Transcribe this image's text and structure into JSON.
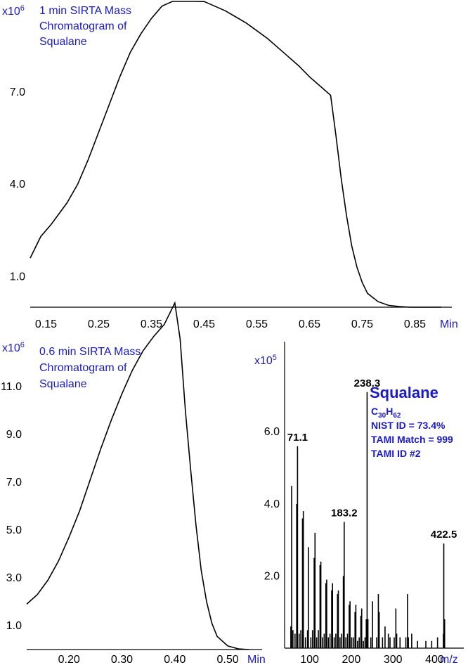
{
  "chart_data": [
    {
      "type": "line",
      "title": "1 min SIRTA Mass Chromatogram of Squalane",
      "title_lines": [
        "1 min SIRTA Mass",
        "Chromatogram of",
        "Squalane"
      ],
      "y_unit": "x10",
      "y_unit_exp": "6",
      "x_unit": "Min",
      "xlim": [
        0.12,
        0.92
      ],
      "ylim": [
        0,
        10
      ],
      "x_ticks": [
        {
          "v": 0.15,
          "label": "0.15"
        },
        {
          "v": 0.25,
          "label": "0.25"
        },
        {
          "v": 0.35,
          "label": "0.35"
        },
        {
          "v": 0.45,
          "label": "0.45"
        },
        {
          "v": 0.55,
          "label": "0.55"
        },
        {
          "v": 0.65,
          "label": "0.65"
        },
        {
          "v": 0.75,
          "label": "0.75"
        },
        {
          "v": 0.85,
          "label": "0.85"
        }
      ],
      "y_ticks": [
        {
          "v": 1.0,
          "label": "1.0"
        },
        {
          "v": 4.0,
          "label": "4.0"
        },
        {
          "v": 7.0,
          "label": "7.0"
        }
      ],
      "series": [
        {
          "x": [
            0.12,
            0.14,
            0.16,
            0.19,
            0.21,
            0.23,
            0.25,
            0.27,
            0.29,
            0.31,
            0.33,
            0.35,
            0.37,
            0.39,
            0.41,
            0.43,
            0.45,
            0.47,
            0.49,
            0.51,
            0.53,
            0.55,
            0.57,
            0.59,
            0.61,
            0.63,
            0.65,
            0.67,
            0.69,
            0.7,
            0.71,
            0.72,
            0.73,
            0.74,
            0.75,
            0.76,
            0.78,
            0.8,
            0.82,
            0.84,
            0.86,
            0.88,
            0.9
          ],
          "y": [
            1.6,
            2.3,
            2.7,
            3.4,
            4.0,
            4.8,
            5.7,
            6.6,
            7.5,
            8.3,
            8.9,
            9.4,
            9.8,
            10.0,
            10.05,
            10.02,
            9.95,
            9.8,
            9.65,
            9.45,
            9.25,
            9.0,
            8.75,
            8.45,
            8.15,
            7.85,
            7.5,
            7.2,
            6.9,
            5.6,
            4.2,
            3.0,
            2.0,
            1.3,
            0.8,
            0.45,
            0.18,
            0.06,
            0.02,
            0.0,
            0.0,
            0.0,
            0.0
          ]
        }
      ]
    },
    {
      "type": "line",
      "title": "0.6 min SIRTA Mass Chromatogram of Squalane",
      "title_lines": [
        "0.6 min SIRTA Mass",
        "Chromatogram of",
        "Squalane"
      ],
      "y_unit": "x10",
      "y_unit_exp": "6",
      "x_unit": "Min",
      "xlim": [
        0.12,
        0.565
      ],
      "ylim": [
        0,
        13.0
      ],
      "x_ticks": [
        {
          "v": 0.2,
          "label": "0.20"
        },
        {
          "v": 0.3,
          "label": "0.30"
        },
        {
          "v": 0.4,
          "label": "0.40"
        },
        {
          "v": 0.5,
          "label": "0.50"
        }
      ],
      "y_ticks": [
        {
          "v": 1.0,
          "label": "1.0"
        },
        {
          "v": 3.0,
          "label": "3.0"
        },
        {
          "v": 5.0,
          "label": "5.0"
        },
        {
          "v": 7.0,
          "label": "7.0"
        },
        {
          "v": 9.0,
          "label": "9.0"
        },
        {
          "v": 11.0,
          "label": "11.0"
        }
      ],
      "series": [
        {
          "x": [
            0.12,
            0.14,
            0.16,
            0.18,
            0.2,
            0.22,
            0.24,
            0.26,
            0.28,
            0.3,
            0.32,
            0.34,
            0.36,
            0.38,
            0.4,
            0.41,
            0.42,
            0.43,
            0.44,
            0.45,
            0.46,
            0.47,
            0.48,
            0.5,
            0.52,
            0.54
          ],
          "y": [
            1.9,
            2.3,
            2.9,
            3.7,
            4.7,
            5.8,
            7.1,
            8.4,
            9.6,
            10.7,
            11.7,
            12.5,
            13.1,
            13.6,
            14.5,
            13.0,
            10.0,
            7.5,
            5.2,
            3.3,
            2.0,
            1.1,
            0.55,
            0.15,
            0.03,
            0.0
          ]
        }
      ]
    },
    {
      "type": "bar",
      "title": "Squalane",
      "y_unit": "x10",
      "y_unit_exp": "5",
      "x_unit": "m/z",
      "xlim": [
        40,
        470
      ],
      "ylim": [
        0,
        8.5
      ],
      "x_ticks": [
        {
          "v": 100,
          "label": "100"
        },
        {
          "v": 200,
          "label": "200"
        },
        {
          "v": 300,
          "label": "300"
        },
        {
          "v": 400,
          "label": "400"
        }
      ],
      "y_ticks": [
        {
          "v": 2.0,
          "label": "2.0"
        },
        {
          "v": 4.0,
          "label": "4.0"
        },
        {
          "v": 6.0,
          "label": "6.0"
        }
      ],
      "peaks_mz": [
        55,
        57,
        60,
        65,
        69,
        71,
        75,
        79,
        83,
        85,
        90,
        95,
        97,
        103,
        107,
        111,
        113,
        117,
        121,
        125,
        127,
        131,
        135,
        139,
        141,
        145,
        149,
        153,
        155,
        159,
        163,
        167,
        169,
        173,
        177,
        181,
        183,
        187,
        191,
        195,
        197,
        201,
        205,
        209,
        211,
        215,
        219,
        223,
        225,
        229,
        233,
        236,
        238,
        240,
        247,
        251,
        261,
        265,
        267,
        275,
        281,
        289,
        293,
        303,
        307,
        309,
        317,
        331,
        335,
        337,
        345,
        359,
        379,
        393,
        407,
        421,
        422,
        424
      ],
      "peaks_int": [
        0.6,
        4.5,
        0.5,
        0.4,
        4.0,
        5.6,
        0.4,
        0.5,
        3.6,
        3.8,
        0.3,
        0.5,
        2.8,
        0.3,
        0.5,
        2.5,
        3.2,
        0.3,
        0.5,
        2.3,
        2.4,
        0.3,
        0.4,
        1.8,
        1.9,
        0.3,
        0.4,
        1.6,
        1.8,
        0.3,
        0.4,
        1.5,
        1.6,
        0.3,
        0.4,
        2.0,
        3.5,
        0.3,
        0.4,
        1.2,
        1.3,
        0.3,
        0.3,
        1.0,
        1.2,
        0.2,
        0.3,
        0.9,
        1.1,
        0.2,
        0.3,
        0.8,
        7.1,
        0.8,
        0.3,
        1.3,
        0.3,
        1.5,
        1.0,
        0.3,
        0.6,
        0.4,
        0.3,
        0.3,
        1.1,
        0.4,
        0.3,
        0.3,
        1.5,
        0.3,
        0.4,
        0.2,
        0.2,
        0.2,
        0.3,
        0.4,
        2.9,
        0.8
      ],
      "peak_labels": [
        {
          "mz": 71,
          "intensity": 5.6,
          "label": "71.1"
        },
        {
          "mz": 183,
          "intensity": 3.5,
          "label": "183.2"
        },
        {
          "mz": 238,
          "intensity": 7.1,
          "label": "238.3"
        },
        {
          "mz": 422,
          "intensity": 2.9,
          "label": "422.5"
        }
      ],
      "compound": {
        "name": "Squalane",
        "formula_c": "C",
        "formula_c_sub": "30",
        "formula_h": "H",
        "formula_h_sub": "62",
        "info_lines": [
          "NIST ID = 73.4%",
          "TAMI Match = 999",
          "TAMI ID #2"
        ]
      }
    }
  ],
  "colors": {
    "annotation": "#1a1ac8",
    "line": "#000000"
  }
}
